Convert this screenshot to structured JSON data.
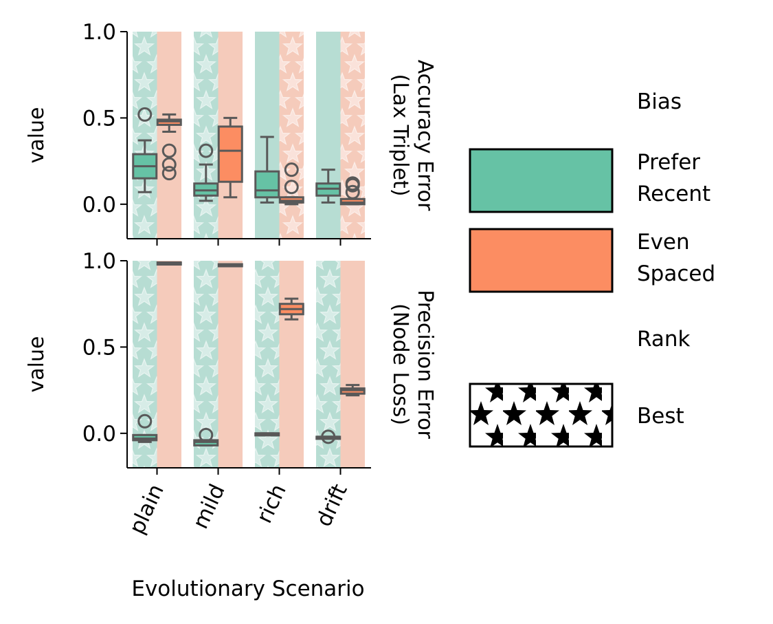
{
  "chart_data": {
    "type": "box",
    "xlabel": "Evolutionary Scenario",
    "ylabel": "value",
    "categories": [
      "plain",
      "mild",
      "rich",
      "drift"
    ],
    "ylim": [
      -0.2,
      1.0
    ],
    "yticks": [
      "1.0",
      "0.5",
      "0.0"
    ],
    "grid": false,
    "legend": {
      "placement": "right",
      "bias_title": "Bias",
      "bias_entries": [
        {
          "label_lines": [
            "Prefer",
            "Recent"
          ],
          "color": "#66c2a5"
        },
        {
          "label_lines": [
            "Even",
            "Spaced"
          ],
          "color": "#fc8d62"
        }
      ],
      "rank_title": "Rank",
      "rank_entries": [
        {
          "label": "Best",
          "pattern": "star"
        }
      ]
    },
    "background_colors": {
      "prefer_recent": "#b7ddd3",
      "even_spaced": "#f5cbbb"
    },
    "panels": [
      {
        "row_label_lines": [
          "Accuracy Error",
          "(Lax Triplet)"
        ],
        "best_rank": {
          "prefer_recent": [
            true,
            true,
            false,
            false
          ],
          "even_spaced": [
            false,
            false,
            true,
            true
          ]
        },
        "series": [
          {
            "name": "Prefer Recent",
            "color": "#66c2a5",
            "boxes": [
              {
                "whislo": 0.07,
                "q1": 0.15,
                "med": 0.22,
                "q3": 0.29,
                "whishi": 0.37,
                "fliers": [
                  0.52
                ]
              },
              {
                "whislo": 0.02,
                "q1": 0.05,
                "med": 0.08,
                "q3": 0.12,
                "whishi": 0.23,
                "fliers": [
                  0.31
                ]
              },
              {
                "whislo": 0.01,
                "q1": 0.04,
                "med": 0.08,
                "q3": 0.19,
                "whishi": 0.39,
                "fliers": []
              },
              {
                "whislo": 0.01,
                "q1": 0.05,
                "med": 0.09,
                "q3": 0.12,
                "whishi": 0.2,
                "fliers": []
              }
            ]
          },
          {
            "name": "Even Spaced",
            "color": "#fc8d62",
            "boxes": [
              {
                "whislo": 0.42,
                "q1": 0.46,
                "med": 0.48,
                "q3": 0.49,
                "whishi": 0.52,
                "fliers": [
                  0.31,
                  0.23,
                  0.18
                ]
              },
              {
                "whislo": 0.04,
                "q1": 0.13,
                "med": 0.31,
                "q3": 0.45,
                "whishi": 0.5,
                "fliers": []
              },
              {
                "whislo": 0.0,
                "q1": 0.01,
                "med": 0.02,
                "q3": 0.04,
                "whishi": 0.04,
                "fliers": [
                  0.2,
                  0.1
                ]
              },
              {
                "whislo": 0.0,
                "q1": 0.0,
                "med": 0.01,
                "q3": 0.03,
                "whishi": 0.03,
                "fliers": [
                  0.12,
                  0.11,
                  0.07
                ]
              }
            ]
          }
        ]
      },
      {
        "row_label_lines": [
          "Precision Error",
          "(Node Loss)"
        ],
        "best_rank": {
          "prefer_recent": [
            true,
            true,
            true,
            true
          ],
          "even_spaced": [
            false,
            false,
            false,
            false
          ]
        },
        "series": [
          {
            "name": "Prefer Recent",
            "color": "#66c2a5",
            "boxes": [
              {
                "whislo": -0.05,
                "q1": -0.04,
                "med": -0.03,
                "q3": -0.01,
                "whishi": -0.01,
                "fliers": [
                  0.07
                ]
              },
              {
                "whislo": -0.07,
                "q1": -0.07,
                "med": -0.05,
                "q3": -0.04,
                "whishi": -0.04,
                "fliers": [
                  -0.01
                ]
              },
              {
                "whislo": -0.01,
                "q1": -0.01,
                "med": -0.0,
                "q3": 0.0,
                "whishi": 0.0,
                "fliers": []
              },
              {
                "whislo": -0.02,
                "q1": -0.02,
                "med": -0.02,
                "q3": -0.02,
                "whishi": -0.02,
                "fliers": [
                  -0.02
                ]
              }
            ]
          },
          {
            "name": "Even Spaced",
            "color": "#fc8d62",
            "boxes": [
              {
                "whislo": 0.99,
                "q1": 0.99,
                "med": 0.99,
                "q3": 0.99,
                "whishi": 0.99,
                "fliers": []
              },
              {
                "whislo": 0.97,
                "q1": 0.97,
                "med": 0.98,
                "q3": 0.98,
                "whishi": 0.98,
                "fliers": []
              },
              {
                "whislo": 0.66,
                "q1": 0.69,
                "med": 0.72,
                "q3": 0.75,
                "whishi": 0.78,
                "fliers": []
              },
              {
                "whislo": 0.22,
                "q1": 0.23,
                "med": 0.25,
                "q3": 0.26,
                "whishi": 0.28,
                "fliers": []
              }
            ]
          }
        ]
      }
    ]
  }
}
